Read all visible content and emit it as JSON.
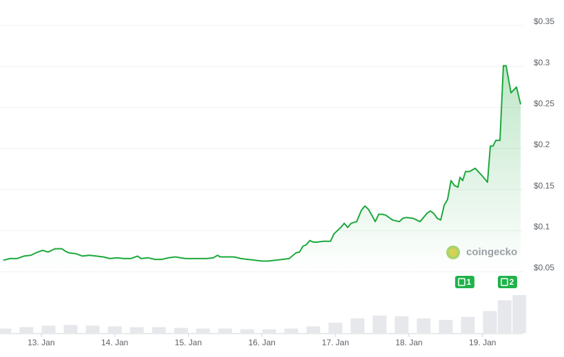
{
  "chart_data": {
    "type": "area",
    "x": [
      12.485,
      12.579,
      12.672,
      12.766,
      12.859,
      12.953,
      13.019,
      13.094,
      13.187,
      13.281,
      13.328,
      13.375,
      13.468,
      13.562,
      13.655,
      13.749,
      13.843,
      13.936,
      14.03,
      14.124,
      14.217,
      14.311,
      14.358,
      14.451,
      14.545,
      14.639,
      14.732,
      14.826,
      14.891,
      14.966,
      15.06,
      15.154,
      15.247,
      15.341,
      15.397,
      15.434,
      15.528,
      15.622,
      15.715,
      15.809,
      15.903,
      15.996,
      16.09,
      16.184,
      16.277,
      16.371,
      16.464,
      16.511,
      16.558,
      16.605,
      16.652,
      16.699,
      16.745,
      16.839,
      16.933,
      16.979,
      17.026,
      17.073,
      17.12,
      17.167,
      17.213,
      17.288,
      17.354,
      17.401,
      17.448,
      17.494,
      17.541,
      17.588,
      17.635,
      17.682,
      17.775,
      17.869,
      17.916,
      17.963,
      18.056,
      18.15,
      18.197,
      18.243,
      18.29,
      18.337,
      18.384,
      18.431,
      18.478,
      18.524,
      18.571,
      18.618,
      18.665,
      18.693,
      18.73,
      18.768,
      18.824,
      18.899,
      18.993,
      19.067,
      19.105,
      19.142,
      19.18,
      19.236,
      19.283,
      19.32,
      19.386,
      19.461,
      19.517
    ],
    "series": [
      {
        "name": "price",
        "color": "#1aa83b",
        "values": [
          0.064,
          0.066,
          0.066,
          0.069,
          0.07,
          0.074,
          0.076,
          0.074,
          0.078,
          0.078,
          0.075,
          0.073,
          0.072,
          0.069,
          0.07,
          0.069,
          0.068,
          0.066,
          0.067,
          0.066,
          0.066,
          0.069,
          0.066,
          0.067,
          0.065,
          0.065,
          0.067,
          0.068,
          0.067,
          0.066,
          0.066,
          0.066,
          0.066,
          0.067,
          0.07,
          0.068,
          0.068,
          0.068,
          0.066,
          0.065,
          0.064,
          0.063,
          0.063,
          0.064,
          0.065,
          0.066,
          0.073,
          0.074,
          0.081,
          0.083,
          0.088,
          0.086,
          0.086,
          0.087,
          0.087,
          0.096,
          0.1,
          0.104,
          0.109,
          0.104,
          0.109,
          0.111,
          0.125,
          0.13,
          0.126,
          0.119,
          0.111,
          0.12,
          0.12,
          0.119,
          0.113,
          0.111,
          0.115,
          0.116,
          0.115,
          0.111,
          0.116,
          0.121,
          0.124,
          0.121,
          0.115,
          0.113,
          0.131,
          0.138,
          0.161,
          0.155,
          0.153,
          0.165,
          0.161,
          0.172,
          0.172,
          0.176,
          0.167,
          0.159,
          0.203,
          0.203,
          0.21,
          0.21,
          0.301,
          0.301,
          0.268,
          0.275,
          0.254
        ]
      }
    ],
    "volume": {
      "x": [
        12.5,
        12.8,
        13.1,
        13.4,
        13.7,
        14.0,
        14.3,
        14.6,
        14.9,
        15.2,
        15.5,
        15.8,
        16.1,
        16.4,
        16.7,
        17.0,
        17.3,
        17.6,
        17.9,
        18.2,
        18.5,
        18.8,
        19.1,
        19.3,
        19.5
      ],
      "values": [
        6,
        8,
        10,
        11,
        10,
        9,
        8,
        8,
        7,
        6,
        6,
        5,
        5,
        6,
        9,
        14,
        20,
        24,
        23,
        20,
        18,
        22,
        30,
        45,
        52
      ]
    },
    "xlim": [
      12.44,
      19.55
    ],
    "xticks": [
      {
        "value": 13,
        "label": "13. Jan"
      },
      {
        "value": 14,
        "label": "14. Jan"
      },
      {
        "value": 15,
        "label": "15. Jan"
      },
      {
        "value": 16,
        "label": "16. Jan"
      },
      {
        "value": 17,
        "label": "17. Jan"
      },
      {
        "value": 18,
        "label": "18. Jan"
      },
      {
        "value": 19,
        "label": "19. Jan"
      }
    ],
    "ylim": [
      0.05,
      0.35
    ],
    "yticks": [
      {
        "value": 0.05,
        "label": "$0.05"
      },
      {
        "value": 0.1,
        "label": "$0.1"
      },
      {
        "value": 0.15,
        "label": "$0.15"
      },
      {
        "value": 0.2,
        "label": "$0.2"
      },
      {
        "value": 0.25,
        "label": "$0.25"
      },
      {
        "value": 0.3,
        "label": "$0.3"
      },
      {
        "value": 0.35,
        "label": "$0.35"
      }
    ],
    "grid": true,
    "watermark": "coingecko",
    "annotations": [
      {
        "x": 18.758,
        "label": "1"
      },
      {
        "x": 19.339,
        "label": "2"
      }
    ]
  }
}
